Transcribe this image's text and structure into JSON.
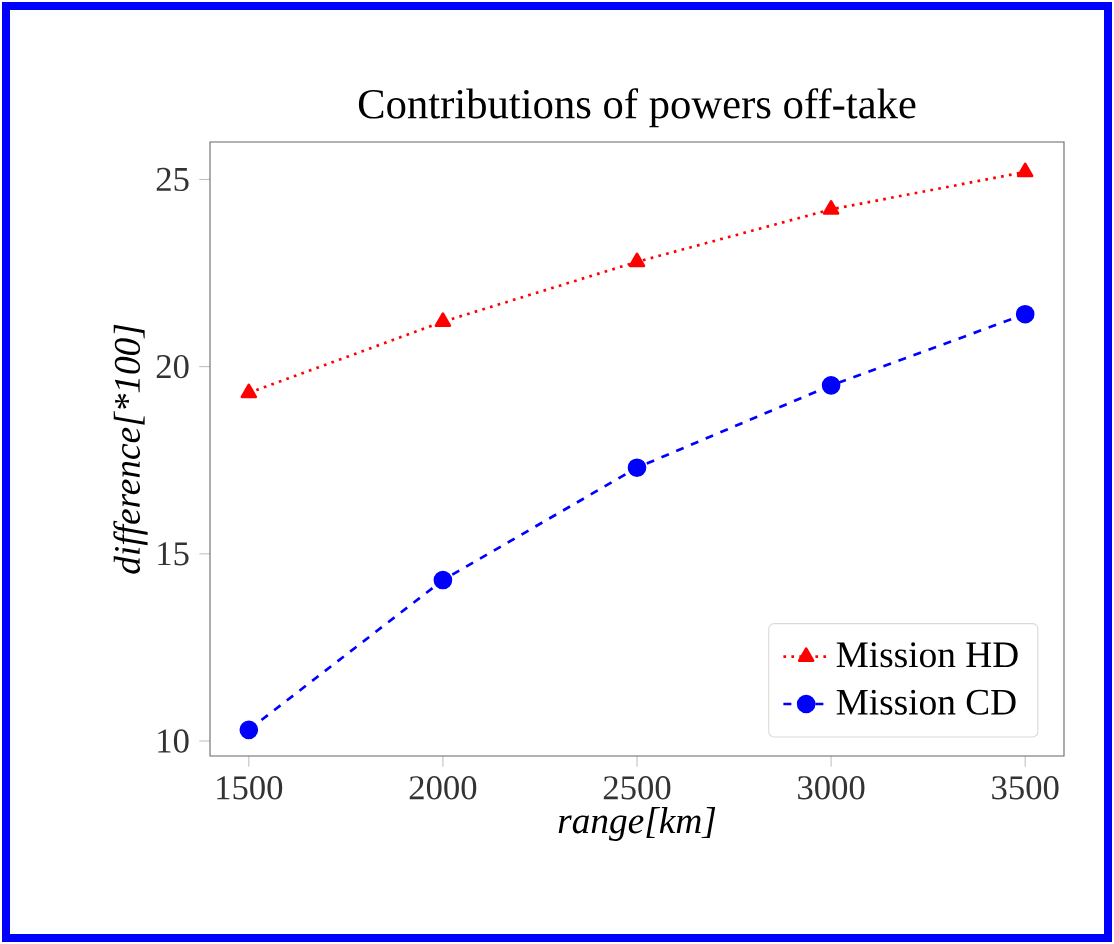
{
  "chart_data": {
    "type": "line",
    "title": "Contributions of powers off-take",
    "xlabel": "range[km]",
    "ylabel": "difference[*100]",
    "x": [
      1500,
      2000,
      2500,
      3000,
      3500
    ],
    "series": [
      {
        "name": "Mission HD",
        "color": "#ff0000",
        "marker": "triangle",
        "line_style": "dotted",
        "values": [
          19.3,
          21.2,
          22.8,
          24.2,
          25.2
        ]
      },
      {
        "name": "Mission CD",
        "color": "#0000ff",
        "marker": "circle",
        "line_style": "dashed",
        "values": [
          10.3,
          14.3,
          17.3,
          19.5,
          21.4
        ]
      }
    ],
    "xlim": [
      1400,
      3600
    ],
    "ylim": [
      9.6,
      26.0
    ],
    "xticks": [
      1500,
      2000,
      2500,
      3000,
      3500
    ],
    "yticks": [
      10,
      15,
      20,
      25
    ],
    "grid": false,
    "legend": "bottom right"
  }
}
